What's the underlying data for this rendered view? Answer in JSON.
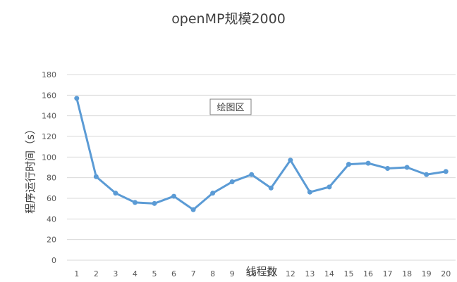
{
  "chart_data": {
    "type": "line",
    "title": "openMP规模2000",
    "xlabel": "线程数",
    "ylabel": "程序运行时间（s）",
    "annotation": "绘图区",
    "x": [
      1,
      2,
      3,
      4,
      5,
      6,
      7,
      8,
      9,
      10,
      11,
      12,
      13,
      14,
      15,
      16,
      17,
      18,
      19,
      20
    ],
    "series": [
      {
        "values": [
          157,
          81,
          65,
          56,
          55,
          62,
          49,
          65,
          76,
          83,
          70,
          97,
          66,
          71,
          93,
          94,
          89,
          90,
          83,
          86
        ]
      }
    ],
    "ylim": [
      0,
      180
    ],
    "yticks": [
      0,
      20,
      40,
      60,
      80,
      100,
      120,
      140,
      160,
      180
    ],
    "grid": true,
    "line_color": "#5b9bd5",
    "grid_color": "#d9d9d9"
  }
}
